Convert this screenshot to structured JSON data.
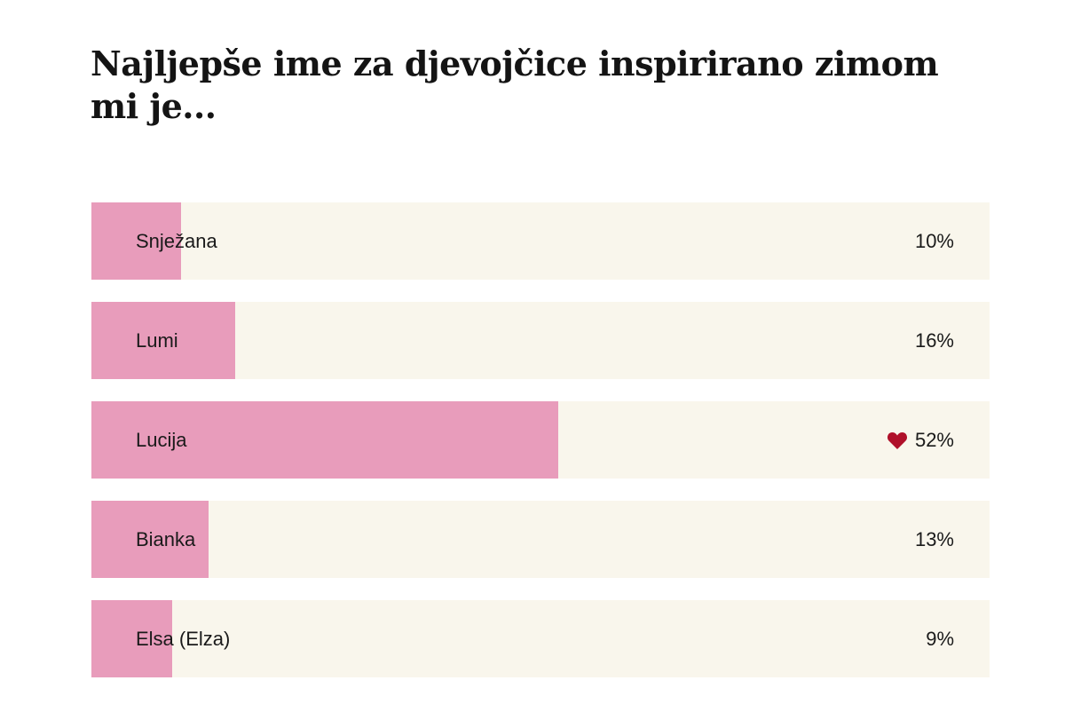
{
  "poll": {
    "question": "Najljepše ime za djevojčice inspirirano zimom mi je...",
    "options": [
      {
        "label": "Snježana",
        "percent": "10%",
        "value": 10,
        "voted": false
      },
      {
        "label": "Lumi",
        "percent": "16%",
        "value": 16,
        "voted": false
      },
      {
        "label": "Lucija",
        "percent": "52%",
        "value": 52,
        "voted": true
      },
      {
        "label": "Bianka",
        "percent": "13%",
        "value": 13,
        "voted": false
      },
      {
        "label": "Elsa (Elza)",
        "percent": "9%",
        "value": 9,
        "voted": false
      }
    ],
    "colors": {
      "fill": "#e89cbb",
      "track": "#f9f6ec",
      "heart": "#b0102a"
    }
  },
  "chart_data": {
    "type": "bar",
    "orientation": "horizontal",
    "title": "Najljepše ime za djevojčice inspirirano zimom mi je...",
    "categories": [
      "Snježana",
      "Lumi",
      "Lucija",
      "Bianka",
      "Elsa (Elza)"
    ],
    "values": [
      10,
      16,
      52,
      13,
      9
    ],
    "unit": "%",
    "xlabel": "",
    "ylabel": "",
    "xlim": [
      0,
      100
    ],
    "annotations": [
      "heart icon marks selected option: Lucija"
    ],
    "grid": false,
    "legend": null
  }
}
